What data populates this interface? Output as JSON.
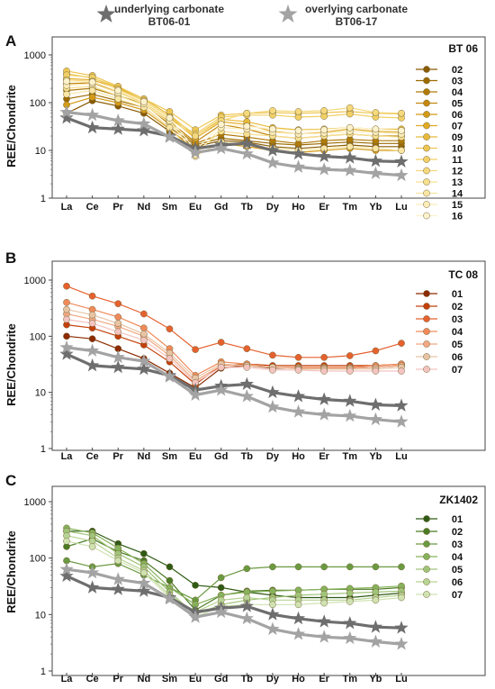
{
  "legend_top": [
    {
      "label1": "underlying carbonate",
      "label2": "BT06-01",
      "color": "#6e6e6e"
    },
    {
      "label1": "overlying carbonate",
      "label2": "BT06-17",
      "color": "#a3a3a3"
    }
  ],
  "chart_data": [
    {
      "type": "line",
      "panel": "A",
      "title": "BT 06",
      "ylabel": "REE/Chondrite",
      "yscale": "log",
      "ylim": [
        1,
        1000
      ],
      "yticks": [
        "1",
        "10",
        "100",
        "1000"
      ],
      "categories": [
        "La",
        "Ce",
        "Pr",
        "Nd",
        "Sm",
        "Eu",
        "Gd",
        "Tb",
        "Dy",
        "Ho",
        "Er",
        "Tm",
        "Yb",
        "Lu"
      ],
      "reference": [
        {
          "name": "BT06-01",
          "color": "#6e6e6e",
          "values": [
            48,
            30,
            28,
            26,
            20,
            11,
            13,
            14,
            10,
            8.5,
            7.5,
            7,
            6,
            5.8
          ]
        },
        {
          "name": "BT06-17",
          "color": "#a3a3a3",
          "values": [
            63,
            55,
            42,
            36,
            19,
            9,
            11,
            8.5,
            5.5,
            4.5,
            4,
            3.8,
            3.3,
            3
          ]
        }
      ],
      "series": [
        {
          "name": "02",
          "color": "#8a5a00",
          "values": [
            60,
            110,
            85,
            60,
            25,
            12,
            16,
            15,
            12,
            11,
            12,
            13,
            12,
            12
          ]
        },
        {
          "name": "03",
          "color": "#9c6a00",
          "values": [
            120,
            150,
            110,
            80,
            30,
            13,
            18,
            16,
            14,
            13,
            14,
            15,
            14,
            14
          ]
        },
        {
          "name": "04",
          "color": "#b07a08",
          "values": [
            180,
            200,
            140,
            95,
            35,
            14,
            22,
            19,
            16,
            14,
            16,
            17,
            16,
            16
          ]
        },
        {
          "name": "05",
          "color": "#c4880e",
          "values": [
            250,
            260,
            170,
            100,
            40,
            15,
            35,
            28,
            20,
            18,
            20,
            22,
            20,
            20
          ]
        },
        {
          "name": "06",
          "color": "#d49a16",
          "values": [
            90,
            130,
            100,
            70,
            28,
            10,
            14,
            12,
            10,
            9,
            10,
            11,
            10,
            10
          ]
        },
        {
          "name": "07",
          "color": "#e1aa24",
          "values": [
            320,
            300,
            200,
            110,
            50,
            18,
            40,
            35,
            25,
            22,
            24,
            28,
            25,
            24
          ]
        },
        {
          "name": "09",
          "color": "#e8ba3a",
          "values": [
            400,
            330,
            210,
            120,
            55,
            20,
            45,
            40,
            30,
            27,
            28,
            30,
            28,
            28
          ]
        },
        {
          "name": "10",
          "color": "#eec652",
          "values": [
            460,
            370,
            220,
            120,
            65,
            27,
            55,
            60,
            62,
            60,
            62,
            65,
            60,
            58
          ]
        },
        {
          "name": "11",
          "color": "#f2d066",
          "values": [
            380,
            340,
            190,
            110,
            50,
            22,
            50,
            55,
            55,
            50,
            52,
            58,
            50,
            48
          ]
        },
        {
          "name": "12",
          "color": "#f5d97c",
          "values": [
            300,
            280,
            170,
            100,
            45,
            20,
            42,
            60,
            68,
            65,
            68,
            78,
            62,
            60
          ]
        },
        {
          "name": "13",
          "color": "#f7e090",
          "values": [
            200,
            220,
            140,
            90,
            38,
            9,
            25,
            22,
            20,
            18,
            20,
            22,
            20,
            19
          ]
        },
        {
          "name": "14",
          "color": "#f9e6a4",
          "values": [
            150,
            180,
            120,
            80,
            30,
            7.5,
            15,
            13,
            11,
            10,
            11,
            12,
            11,
            10
          ]
        },
        {
          "name": "15",
          "color": "#fbecb8",
          "values": [
            230,
            250,
            160,
            95,
            42,
            8,
            30,
            28,
            24,
            22,
            23,
            25,
            24,
            22
          ]
        },
        {
          "name": "16",
          "color": "#fdf2cc",
          "values": [
            280,
            270,
            180,
            105,
            48,
            10,
            35,
            32,
            28,
            26,
            27,
            30,
            28,
            26
          ]
        }
      ]
    },
    {
      "type": "line",
      "panel": "B",
      "title": "TC 08",
      "ylabel": "REE/Chondrite",
      "yscale": "log",
      "ylim": [
        1,
        1000
      ],
      "yticks": [
        "1",
        "10",
        "100",
        "1000"
      ],
      "categories": [
        "La",
        "Ce",
        "Pr",
        "Nd",
        "Sm",
        "Eu",
        "Gd",
        "Tb",
        "Dy",
        "Ho",
        "Er",
        "Tm",
        "Yb",
        "Lu"
      ],
      "reference": [
        {
          "name": "BT06-01",
          "color": "#6e6e6e",
          "values": [
            48,
            30,
            28,
            26,
            20,
            11,
            13,
            14,
            10,
            8.5,
            7.5,
            7,
            6,
            5.8
          ]
        },
        {
          "name": "BT06-17",
          "color": "#a3a3a3",
          "values": [
            63,
            55,
            42,
            36,
            19,
            9,
            11,
            8.5,
            5.5,
            4.5,
            4,
            3.8,
            3.3,
            3
          ]
        }
      ],
      "series": [
        {
          "name": "01",
          "color": "#8c2a00",
          "values": [
            100,
            90,
            60,
            40,
            22,
            12,
            27,
            30,
            27,
            27,
            27,
            27,
            28,
            30
          ]
        },
        {
          "name": "02",
          "color": "#c4400a",
          "values": [
            160,
            140,
            100,
            70,
            35,
            14,
            30,
            32,
            30,
            30,
            30,
            30,
            30,
            32
          ]
        },
        {
          "name": "03",
          "color": "#e5612e",
          "values": [
            780,
            520,
            380,
            250,
            135,
            58,
            78,
            60,
            46,
            42,
            42,
            45,
            55,
            75
          ]
        },
        {
          "name": "04",
          "color": "#f08a5a",
          "values": [
            400,
            300,
            220,
            140,
            60,
            20,
            35,
            32,
            28,
            28,
            28,
            28,
            30,
            32
          ]
        },
        {
          "name": "05",
          "color": "#f2a882",
          "values": [
            250,
            200,
            150,
            100,
            45,
            16,
            30,
            30,
            28,
            27,
            27,
            27,
            28,
            30
          ]
        },
        {
          "name": "06",
          "color": "#e8c4a4",
          "values": [
            300,
            240,
            170,
            110,
            50,
            18,
            32,
            30,
            28,
            26,
            26,
            26,
            26,
            28
          ]
        },
        {
          "name": "07",
          "color": "#f4c4c0",
          "values": [
            200,
            170,
            120,
            85,
            40,
            15,
            28,
            28,
            25,
            25,
            24,
            24,
            24,
            24
          ]
        }
      ]
    },
    {
      "type": "line",
      "panel": "C",
      "title": "ZK1402",
      "ylabel": "REE/Chondrite",
      "yscale": "log",
      "ylim": [
        1,
        1000
      ],
      "yticks": [
        "1",
        "10",
        "100",
        "1000"
      ],
      "categories": [
        "La",
        "Ce",
        "Pr",
        "Nd",
        "Sm",
        "Eu",
        "Gd",
        "Tb",
        "Dy",
        "Ho",
        "Er",
        "Tm",
        "Yb",
        "Lu"
      ],
      "reference": [
        {
          "name": "BT06-01",
          "color": "#6e6e6e",
          "values": [
            48,
            30,
            28,
            26,
            20,
            11,
            13,
            14,
            10,
            8.5,
            7.5,
            7,
            6,
            5.8
          ]
        },
        {
          "name": "BT06-17",
          "color": "#a3a3a3",
          "values": [
            63,
            55,
            42,
            36,
            19,
            9,
            11,
            8.5,
            5.5,
            4.5,
            4,
            3.8,
            3.3,
            3
          ]
        }
      ],
      "series": [
        {
          "name": "01",
          "color": "#2f5a14",
          "values": [
            300,
            300,
            180,
            120,
            70,
            33,
            30,
            25,
            22,
            20,
            20,
            20,
            22,
            24
          ]
        },
        {
          "name": "02",
          "color": "#4a7a22",
          "values": [
            160,
            220,
            130,
            90,
            40,
            12,
            22,
            26,
            27,
            27,
            28,
            28,
            28,
            30
          ]
        },
        {
          "name": "03",
          "color": "#6a9a40",
          "values": [
            90,
            70,
            80,
            50,
            30,
            18,
            45,
            65,
            70,
            70,
            70,
            70,
            70,
            70
          ]
        },
        {
          "name": "04",
          "color": "#86b25a",
          "values": [
            340,
            280,
            150,
            80,
            30,
            15,
            22,
            25,
            26,
            27,
            28,
            29,
            30,
            32
          ]
        },
        {
          "name": "05",
          "color": "#a0c478",
          "values": [
            300,
            250,
            120,
            70,
            25,
            10,
            15,
            18,
            20,
            22,
            23,
            24,
            25,
            26
          ]
        },
        {
          "name": "06",
          "color": "#b8d494",
          "values": [
            250,
            200,
            100,
            60,
            22,
            11,
            18,
            20,
            18,
            18,
            18,
            18,
            20,
            22
          ]
        },
        {
          "name": "07",
          "color": "#cfe2b0",
          "values": [
            200,
            160,
            90,
            55,
            20,
            9,
            14,
            15,
            15,
            15,
            16,
            17,
            18,
            20
          ]
        }
      ]
    }
  ]
}
